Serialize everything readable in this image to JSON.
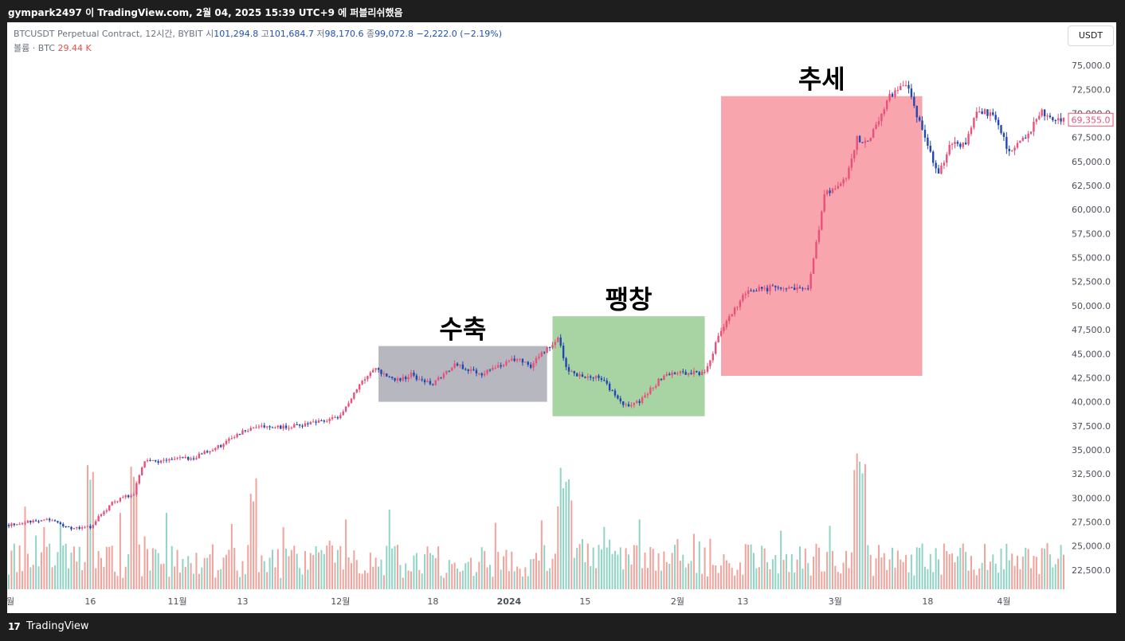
{
  "header": {
    "title": "gympark2497 이 TradingView.com, 2월 04, 2025 15:39 UTC+9 에 퍼블리쉬했음"
  },
  "legend": {
    "symbol": "BTCUSDT Perpetual Contract, 12시간, BYBIT",
    "open_label": "시",
    "open": "101,294.8",
    "high_label": "고",
    "high": "101,684.7",
    "low_label": "저",
    "low": "98,170.6",
    "close_label": "종",
    "close": "99,072.8",
    "change": "−2,222.0 (−2.19%)",
    "volume_label": "볼륨 · BTC",
    "volume_value": "29.44 K"
  },
  "currency_button": "USDT",
  "footer": {
    "logo": "17",
    "brand": "TradingView"
  },
  "colors": {
    "up": "#e8517a",
    "down": "#2048b0",
    "volume_up": "#f0a39c",
    "volume_down": "#8fd4c5",
    "contraction_box": "#b7b7bf",
    "expansion_box": "#a8d4a4",
    "trend_box": "#f8a5ad",
    "price_badge": "#e8517a"
  },
  "chart_data": {
    "type": "candlestick",
    "title": "",
    "current_price": 69355.0,
    "current_price_label": "69,355.0",
    "ylim": [
      20500,
      76500
    ],
    "yticks": [
      {
        "value": 22500,
        "label": "22,500.0"
      },
      {
        "value": 25000,
        "label": "25,000.0"
      },
      {
        "value": 27500,
        "label": "27,500.0"
      },
      {
        "value": 30000,
        "label": "30,000.0"
      },
      {
        "value": 32500,
        "label": "32,500.0"
      },
      {
        "value": 35000,
        "label": "35,000.0"
      },
      {
        "value": 37500,
        "label": "37,500.0"
      },
      {
        "value": 40000,
        "label": "40,000.0"
      },
      {
        "value": 42500,
        "label": "42,500.0"
      },
      {
        "value": 45000,
        "label": "45,000.0"
      },
      {
        "value": 47500,
        "label": "47,500.0"
      },
      {
        "value": 50000,
        "label": "50,000.0"
      },
      {
        "value": 52500,
        "label": "52,500.0"
      },
      {
        "value": 55000,
        "label": "55,000.0"
      },
      {
        "value": 57500,
        "label": "57,500.0"
      },
      {
        "value": 60000,
        "label": "60,000.0"
      },
      {
        "value": 62500,
        "label": "62,500.0"
      },
      {
        "value": 65000,
        "label": "65,000.0"
      },
      {
        "value": 67500,
        "label": "67,500.0"
      },
      {
        "value": 70000,
        "label": "70,000.0"
      },
      {
        "value": 72500,
        "label": "72,500.0"
      },
      {
        "value": 75000,
        "label": "75,000.0"
      }
    ],
    "x_range": [
      "2023-10-01",
      "2024-04-12"
    ],
    "xticks": [
      {
        "date": "2023-10-01",
        "label": "월"
      },
      {
        "date": "2023-10-16",
        "label": "16"
      },
      {
        "date": "2023-11-01",
        "label": "11월"
      },
      {
        "date": "2023-11-13",
        "label": "13"
      },
      {
        "date": "2023-12-01",
        "label": "12월"
      },
      {
        "date": "2023-12-18",
        "label": "18"
      },
      {
        "date": "2024-01-01",
        "label": "2024"
      },
      {
        "date": "2024-01-15",
        "label": "15"
      },
      {
        "date": "2024-02-01",
        "label": "2월"
      },
      {
        "date": "2024-02-13",
        "label": "13"
      },
      {
        "date": "2024-03-01",
        "label": "3월"
      },
      {
        "date": "2024-03-18",
        "label": "18"
      },
      {
        "date": "2024-04-01",
        "label": "4월"
      }
    ],
    "price_path": [
      {
        "date": "2023-10-01",
        "price": 27200
      },
      {
        "date": "2023-10-08",
        "price": 27800
      },
      {
        "date": "2023-10-13",
        "price": 26800
      },
      {
        "date": "2023-10-16",
        "price": 27000
      },
      {
        "date": "2023-10-20",
        "price": 29500
      },
      {
        "date": "2023-10-24",
        "price": 30500
      },
      {
        "date": "2023-10-26",
        "price": 34000
      },
      {
        "date": "2023-10-28",
        "price": 33800
      },
      {
        "date": "2023-11-04",
        "price": 34200
      },
      {
        "date": "2023-11-09",
        "price": 35500
      },
      {
        "date": "2023-11-15",
        "price": 37500
      },
      {
        "date": "2023-11-20",
        "price": 37300
      },
      {
        "date": "2023-11-25",
        "price": 37600
      },
      {
        "date": "2023-12-01",
        "price": 38500
      },
      {
        "date": "2023-12-04",
        "price": 41500
      },
      {
        "date": "2023-12-07",
        "price": 43500
      },
      {
        "date": "2023-12-11",
        "price": 42200
      },
      {
        "date": "2023-12-14",
        "price": 42800
      },
      {
        "date": "2023-12-18",
        "price": 41800
      },
      {
        "date": "2023-12-22",
        "price": 43800
      },
      {
        "date": "2023-12-27",
        "price": 43000
      },
      {
        "date": "2024-01-02",
        "price": 44500
      },
      {
        "date": "2024-01-05",
        "price": 43800
      },
      {
        "date": "2024-01-10",
        "price": 46500
      },
      {
        "date": "2024-01-12",
        "price": 43000
      },
      {
        "date": "2024-01-18",
        "price": 42500
      },
      {
        "date": "2024-01-22",
        "price": 39500
      },
      {
        "date": "2024-01-25",
        "price": 40000
      },
      {
        "date": "2024-01-29",
        "price": 42500
      },
      {
        "date": "2024-02-01",
        "price": 43000
      },
      {
        "date": "2024-02-06",
        "price": 43000
      },
      {
        "date": "2024-02-09",
        "price": 47500
      },
      {
        "date": "2024-02-14",
        "price": 51800
      },
      {
        "date": "2024-02-20",
        "price": 51800
      },
      {
        "date": "2024-02-25",
        "price": 51500
      },
      {
        "date": "2024-02-28",
        "price": 61500
      },
      {
        "date": "2024-03-03",
        "price": 63000
      },
      {
        "date": "2024-03-05",
        "price": 67500
      },
      {
        "date": "2024-03-07",
        "price": 66800
      },
      {
        "date": "2024-03-11",
        "price": 72000
      },
      {
        "date": "2024-03-14",
        "price": 73000
      },
      {
        "date": "2024-03-17",
        "price": 68500
      },
      {
        "date": "2024-03-20",
        "price": 63500
      },
      {
        "date": "2024-03-22",
        "price": 66500
      },
      {
        "date": "2024-03-25",
        "price": 67000
      },
      {
        "date": "2024-03-27",
        "price": 70000
      },
      {
        "date": "2024-03-30",
        "price": 70200
      },
      {
        "date": "2024-04-02",
        "price": 66000
      },
      {
        "date": "2024-04-05",
        "price": 67500
      },
      {
        "date": "2024-04-08",
        "price": 70000
      },
      {
        "date": "2024-04-12",
        "price": 69355
      }
    ],
    "volume_spikes": [
      {
        "date": "2023-10-16",
        "relative": 0.95
      },
      {
        "date": "2023-10-24",
        "relative": 0.95
      },
      {
        "date": "2023-11-15",
        "relative": 0.8
      },
      {
        "date": "2024-01-11",
        "relative": 0.95
      },
      {
        "date": "2024-01-12",
        "relative": 0.8
      },
      {
        "date": "2024-03-05",
        "relative": 1.0
      },
      {
        "date": "2024-03-06",
        "relative": 1.0
      }
    ],
    "annotations": [
      {
        "label": "수축",
        "start_date": "2023-12-08",
        "end_date": "2024-01-08",
        "low": 40000,
        "high": 45800
      },
      {
        "label": "팽창",
        "start_date": "2024-01-09",
        "end_date": "2024-02-06",
        "low": 38500,
        "high": 48900
      },
      {
        "label": "추세",
        "start_date": "2024-02-09",
        "end_date": "2024-03-17",
        "low": 42700,
        "high": 71800
      }
    ]
  }
}
